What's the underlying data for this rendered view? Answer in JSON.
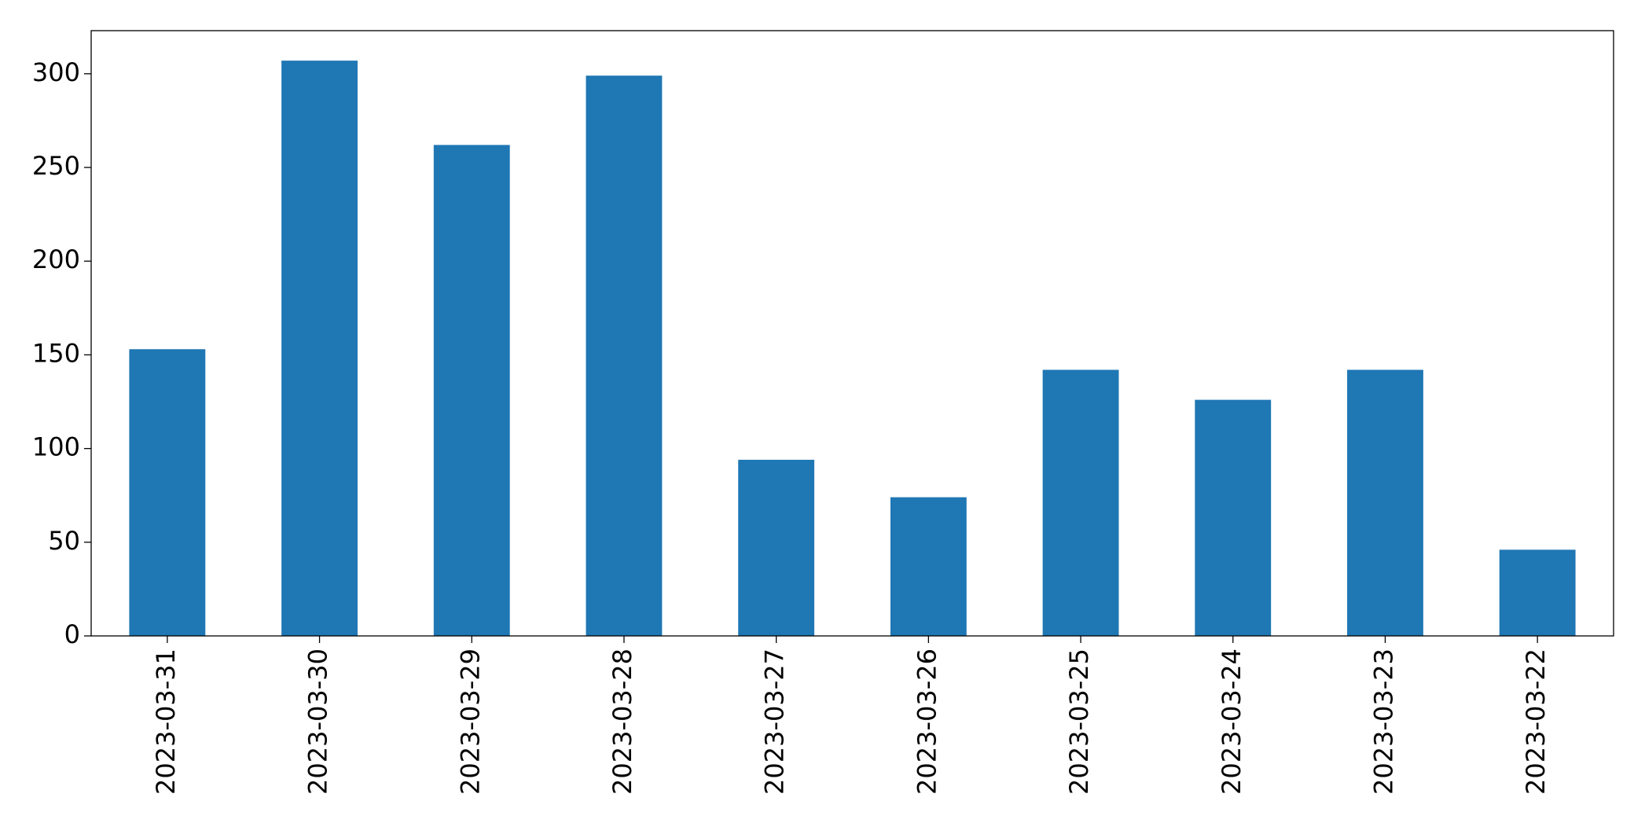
{
  "chart_data": {
    "type": "bar",
    "categories": [
      "2023-03-31",
      "2023-03-30",
      "2023-03-29",
      "2023-03-28",
      "2023-03-27",
      "2023-03-26",
      "2023-03-25",
      "2023-03-24",
      "2023-03-23",
      "2023-03-22"
    ],
    "values": [
      153,
      307,
      262,
      299,
      94,
      74,
      142,
      126,
      142,
      46
    ],
    "color": "#1f77b4",
    "ylim": [
      0,
      323
    ],
    "yticks": [
      0,
      50,
      100,
      150,
      200,
      250,
      300
    ],
    "grid": false
  }
}
